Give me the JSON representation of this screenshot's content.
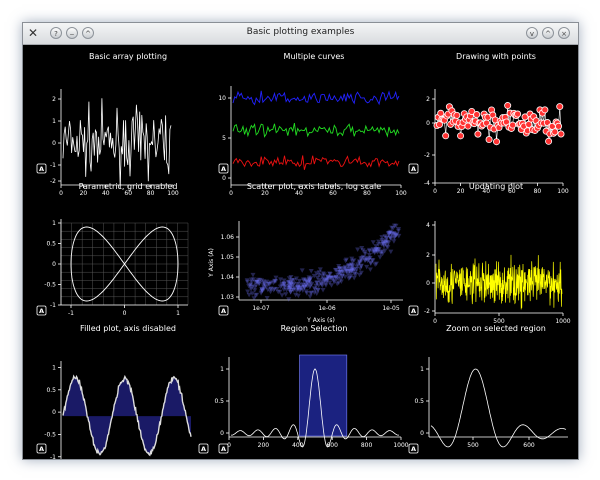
{
  "window": {
    "title": "Basic plotting examples",
    "app_icon": "x-window-icon",
    "buttons": [
      "help-icon",
      "minimize-icon",
      "maximize-icon",
      "shade-icon",
      "menu-icon",
      "close-icon"
    ]
  },
  "auto_range_label": "A",
  "plots": [
    {
      "title": "Basic array plotting",
      "x_ticks": [
        "0",
        "20",
        "40",
        "60",
        "80",
        "100"
      ],
      "y_ticks": [
        "2",
        "1",
        "0",
        "-1",
        "-2"
      ]
    },
    {
      "title": "Multiple curves",
      "x_ticks": [
        "0",
        "20",
        "40",
        "60",
        "80",
        "100"
      ],
      "y_ticks": [
        "10",
        "5",
        "0"
      ]
    },
    {
      "title": "Drawing with points",
      "x_ticks": [
        "0",
        "20",
        "40",
        "60",
        "80",
        "100"
      ],
      "y_ticks": [
        "2",
        "0",
        "-2",
        "-4"
      ]
    },
    {
      "title": "Parametric, grid enabled",
      "x_ticks": [
        "-1",
        "0",
        "1"
      ],
      "y_ticks": [
        "1",
        "0.5",
        "0",
        "-0.5",
        "-1"
      ]
    },
    {
      "title": "Scatter plot, axis labels, log scale",
      "x_ticks": [
        "1e-07",
        "1e-06",
        "1e-05"
      ],
      "y_ticks": [
        "1.06",
        "1.05",
        "1.04",
        "1.03"
      ],
      "xlabel": "Y Axis (s)",
      "ylabel": "Y Axis (A)"
    },
    {
      "title": "Updating plot",
      "x_ticks": [
        "0",
        "500",
        "1000"
      ],
      "y_ticks": [
        "4",
        "2",
        "0",
        "-2"
      ]
    },
    {
      "title": "Filled plot, axis disabled",
      "x_ticks": [],
      "y_ticks": [
        "1",
        "0.5",
        "0",
        "-0.5",
        "-1"
      ]
    },
    {
      "title": "Region Selection",
      "x_ticks": [
        "0",
        "200",
        "400",
        "600",
        "800",
        "1000"
      ],
      "y_ticks": [
        "1",
        "0.5",
        "0"
      ]
    },
    {
      "title": "Zoom on selected region",
      "x_ticks": [
        "500",
        "600"
      ],
      "y_ticks": [
        "1",
        "0.5",
        "0"
      ]
    }
  ],
  "colors": {
    "background": "#000000",
    "curve_white": "#ffffff",
    "curve_blue": "#2222ff",
    "curve_green": "#22dd22",
    "curve_red": "#ee1111",
    "points_red": "#ff3333",
    "scatter_blue": "#6f74ff",
    "updating_yellow": "#ffff00",
    "fill_navy": "#1a1a66",
    "region_navy": "#1b2280"
  }
}
